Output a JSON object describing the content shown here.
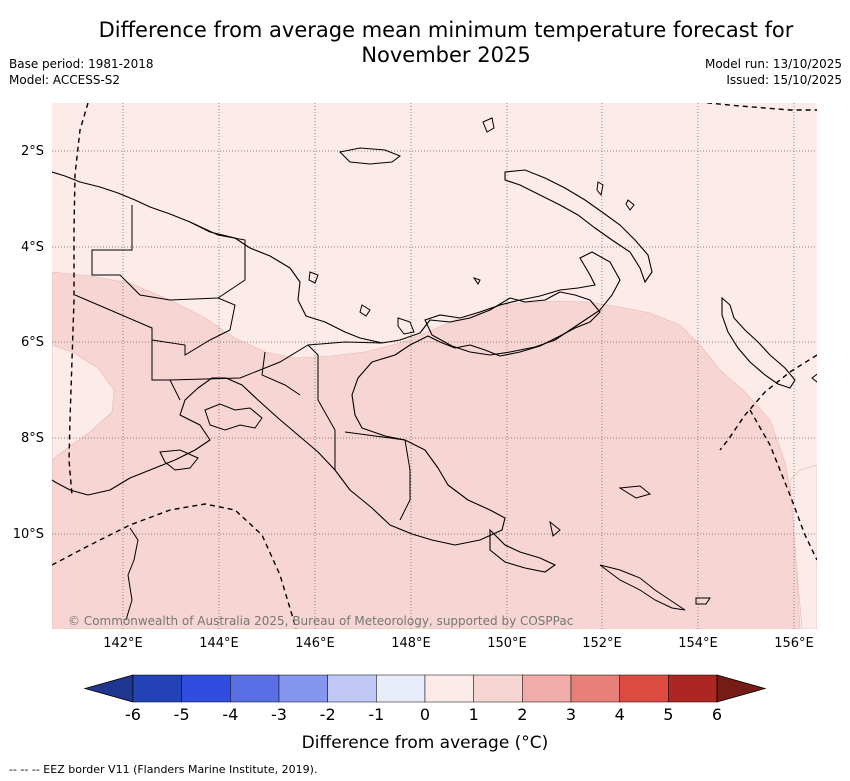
{
  "title": {
    "line1": "Difference from average mean minimum temperature forecast for",
    "line2": "November 2025"
  },
  "meta": {
    "base_period": "Base period: 1981-2018",
    "model": "Model: ACCESS-S2",
    "model_run": "Model run: 13/10/2025",
    "issued": "Issued: 15/10/2025"
  },
  "map": {
    "region": "Papua New Guinea",
    "lat_range": [
      -12,
      -1
    ],
    "lon_range": [
      140.5,
      156.5
    ],
    "lat_labels": [
      "2°S",
      "4°S",
      "6°S",
      "8°S",
      "10°S"
    ],
    "lon_labels": [
      "142°E",
      "144°E",
      "146°E",
      "148°E",
      "150°E",
      "152°E",
      "154°E",
      "156°E"
    ],
    "colors": {
      "band_0_1": "#fcebe8",
      "band_1_2": "#f6d5d2",
      "land_outline": "#000000",
      "gridline": "#666666",
      "eez_border": "#000000"
    },
    "copyright": "© Commonwealth of Australia 2025, Bureau of Meteorology, supported by COSPPac"
  },
  "colorbar": {
    "ticks": [
      "-6",
      "-5",
      "-4",
      "-3",
      "-2",
      "-1",
      "0",
      "1",
      "2",
      "3",
      "4",
      "5",
      "6"
    ],
    "colors": [
      "#20378f",
      "#2442b7",
      "#2f4ee0",
      "#5a6fe6",
      "#8596ee",
      "#c0c8f6",
      "#e8ecfb",
      "#fcebe8",
      "#f6d5d2",
      "#f0aca8",
      "#e78079",
      "#dd4a3f",
      "#ad2722",
      "#761c16"
    ],
    "label": "Difference from average (°C)"
  },
  "footnote": "-- -- -- EEZ border V11 (Flanders Marine Institute, 2019)."
}
